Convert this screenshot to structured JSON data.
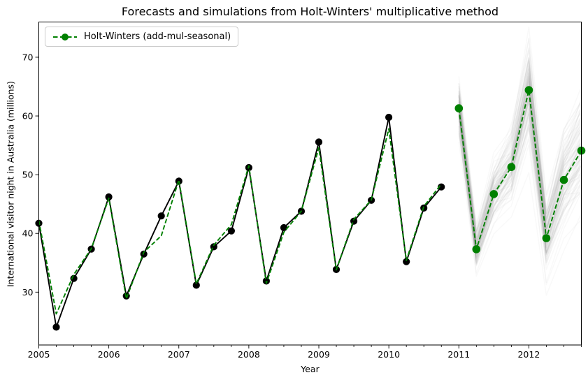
{
  "figure": {
    "title": "Forecasts and simulations from Holt-Winters' multiplicative method",
    "xlabel": "Year",
    "ylabel": "International visitor night in Australia (millions)"
  },
  "legend": {
    "items": [
      {
        "label": "Holt-Winters (add-mul-seasonal)",
        "color": "#008000",
        "style": "dashed-with-marker"
      }
    ]
  },
  "chart_data": {
    "type": "line",
    "title": "Forecasts and simulations from Holt-Winters' multiplicative method",
    "xlabel": "Year",
    "ylabel": "International visitor night in Australia (millions)",
    "xlim": [
      2005.0,
      2012.75
    ],
    "ylim": [
      21,
      76
    ],
    "x_ticks": [
      2005,
      2006,
      2007,
      2008,
      2009,
      2010,
      2011,
      2012
    ],
    "x_minor_tick_step": 0.25,
    "y_ticks": [
      30,
      40,
      50,
      60,
      70
    ],
    "grid": false,
    "legend_position": "upper-left",
    "colors": {
      "observed": "#000000",
      "model": "#008000",
      "simulation": "#808080"
    },
    "series": [
      {
        "name": "observed",
        "legend": null,
        "marker": "circle",
        "line": "solid",
        "color": "#000000",
        "x_start": 2005.0,
        "x_step": 0.25,
        "values": [
          41.73,
          24.04,
          32.33,
          37.33,
          46.21,
          29.35,
          36.48,
          42.98,
          48.9,
          31.18,
          37.72,
          40.42,
          51.21,
          31.89,
          40.98,
          43.77,
          55.56,
          33.85,
          42.08,
          45.64,
          59.77,
          35.19,
          44.32,
          47.91
        ]
      },
      {
        "name": "fitted",
        "legend": null,
        "marker": null,
        "line": "dashed",
        "color": "#008000",
        "x_start": 2005.0,
        "x_step": 0.25,
        "values": [
          42.2,
          26.3,
          33.0,
          37.4,
          46.0,
          28.9,
          36.8,
          39.6,
          49.1,
          31.4,
          38.0,
          41.5,
          51.5,
          31.5,
          40.2,
          43.8,
          54.6,
          33.8,
          42.4,
          45.7,
          57.8,
          35.4,
          44.6,
          48.4
        ]
      },
      {
        "name": "forecast",
        "legend": "Holt-Winters (add-mul-seasonal)",
        "marker": "circle",
        "line": "dashed",
        "color": "#008000",
        "x_start": 2011.0,
        "x_step": 0.25,
        "values": [
          61.3,
          37.3,
          46.7,
          51.3,
          64.4,
          39.2,
          49.1,
          54.1
        ]
      }
    ],
    "simulations": {
      "count": 100,
      "color": "#808080",
      "alpha": 0.05,
      "x_start": 2011.0,
      "x_step": 0.25,
      "follows": "forecast",
      "rel_sigma_per_step": 0.03,
      "seed": 12
    }
  }
}
